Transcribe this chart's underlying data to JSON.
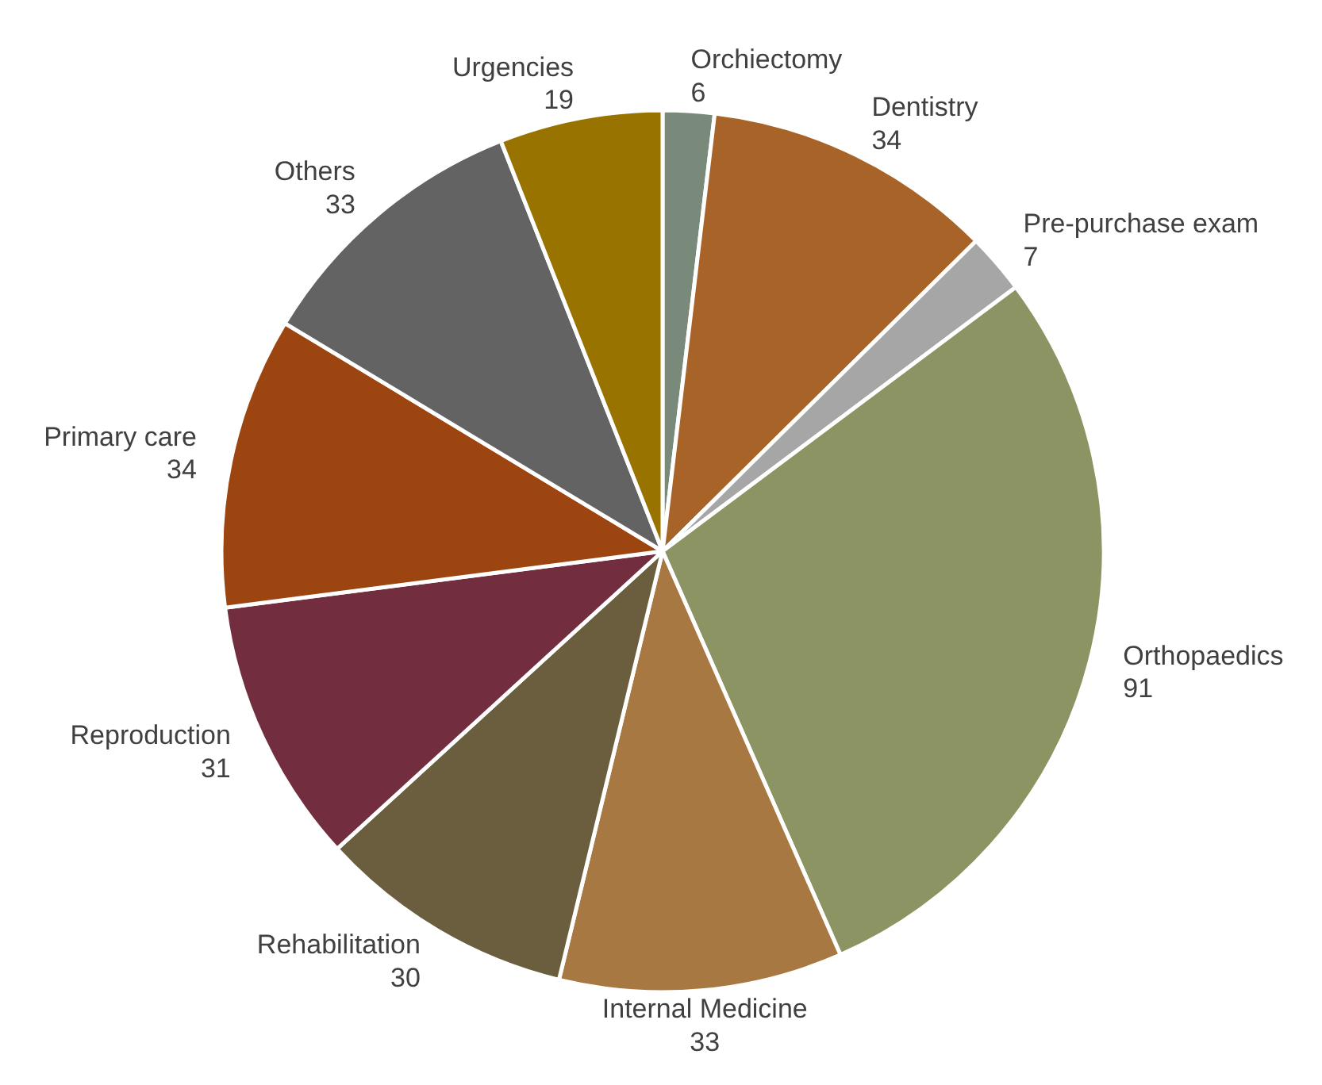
{
  "chart_data": {
    "type": "pie",
    "categories": [
      "Orchiectomy",
      "Dentistry",
      "Pre-purchase exam",
      "Orthopaedics",
      "Internal Medicine",
      "Rehabilitation",
      "Reproduction",
      "Primary care",
      "Others",
      "Urgencies"
    ],
    "values": [
      6,
      34,
      7,
      91,
      33,
      30,
      31,
      34,
      33,
      19
    ],
    "colors": [
      "#7a8a7a",
      "#a86428",
      "#a6a6a6",
      "#8c9463",
      "#a87842",
      "#6b5e3e",
      "#722e3e",
      "#9c4510",
      "#636363",
      "#997300"
    ],
    "data_labels": true
  }
}
